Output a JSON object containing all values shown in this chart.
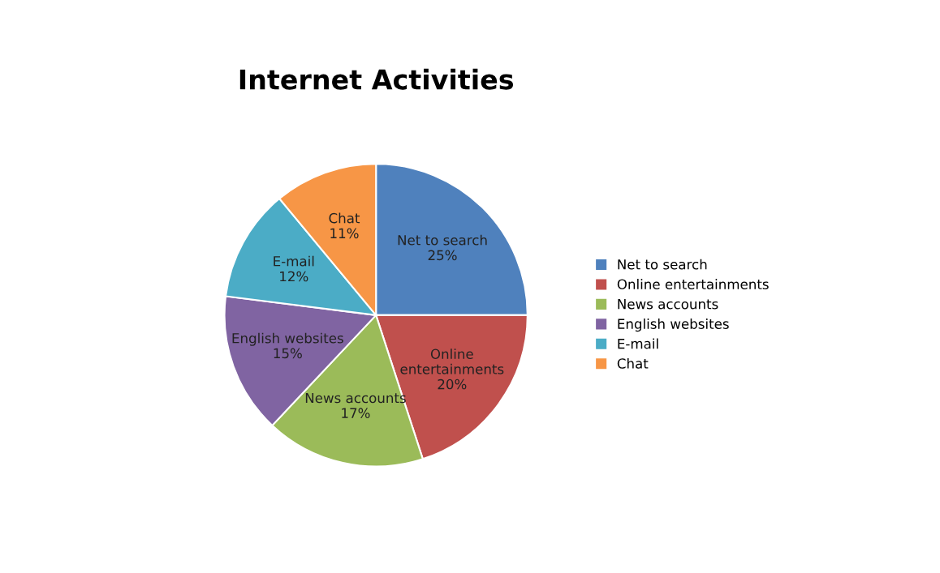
{
  "chart_data": {
    "type": "pie",
    "title": "Internet Activities",
    "categories": [
      "Net to search",
      "Online entertainments",
      "News accounts",
      "English websites",
      "E-mail",
      "Chat"
    ],
    "values": [
      25,
      20,
      17,
      15,
      12,
      11
    ],
    "colors": [
      "#4f81bd",
      "#c0504d",
      "#9bbb59",
      "#8064a2",
      "#4bacc6",
      "#f79646"
    ],
    "value_labels": [
      "25%",
      "20%",
      "17%",
      "15%",
      "12%",
      "11%"
    ],
    "legend": "right"
  }
}
